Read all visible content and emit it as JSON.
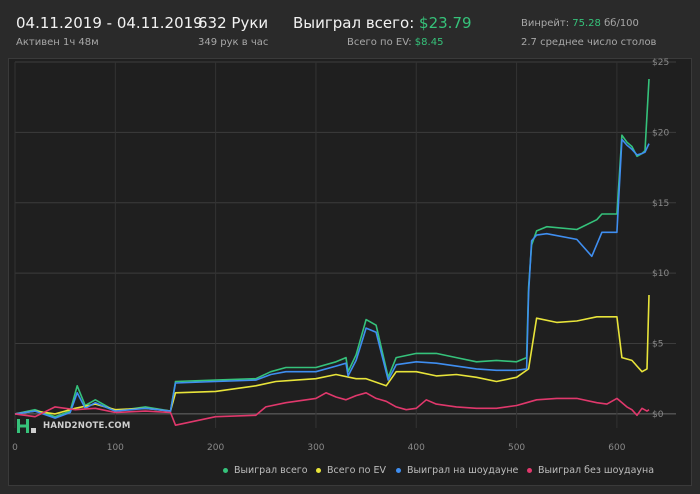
{
  "header": {
    "date_range": "04.11.2019 - 04.11.2019",
    "active_time": "Активен 1ч 48м",
    "hands": "632 Руки",
    "hands_per_hour": "349 рук в час",
    "won_total_label": "Выиграл всего:",
    "won_total_value": "$23.79",
    "ev_total_label": "Всего по EV:",
    "ev_total_value": "$8.45",
    "winrate_label": "Винрейт:",
    "winrate_value": "75.28",
    "winrate_unit": "бб/100",
    "avg_tables": "2.7 среднее число столов"
  },
  "watermark": "HAND2NOTE.COM",
  "colors": {
    "won": "#35c27b",
    "ev": "#e8e43a",
    "showdown": "#3f8ef0",
    "non_showdown": "#e0386c",
    "accent": "#36c27a"
  },
  "chart_data": {
    "type": "line",
    "xlim": [
      0,
      632
    ],
    "ylim": [
      -1,
      25
    ],
    "x_ticks": [
      0,
      100,
      200,
      300,
      400,
      500,
      600
    ],
    "y_ticks": [
      0,
      5,
      10,
      15,
      20,
      25
    ],
    "y_tick_labels": [
      "$0",
      "$5",
      "$10",
      "$15",
      "$20",
      "$25"
    ],
    "grid": true,
    "legend_position": "bottom-right",
    "series": [
      {
        "name": "Выиграл всего",
        "color": "#35c27b",
        "x": [
          0,
          20,
          40,
          55,
          62,
          70,
          80,
          100,
          130,
          155,
          160,
          200,
          240,
          255,
          270,
          300,
          320,
          330,
          332,
          340,
          350,
          360,
          372,
          380,
          400,
          420,
          440,
          460,
          480,
          500,
          510,
          512,
          515,
          520,
          530,
          560,
          580,
          585,
          600,
          605,
          610,
          615,
          620,
          625,
          628,
          632
        ],
        "y": [
          0,
          0.3,
          -0.2,
          0.2,
          2,
          0.6,
          1,
          0.2,
          0.5,
          0.2,
          2.3,
          2.4,
          2.5,
          3,
          3.3,
          3.3,
          3.7,
          4,
          3,
          4.2,
          6.7,
          6.3,
          2.6,
          4,
          4.3,
          4.3,
          4,
          3.7,
          3.8,
          3.7,
          4,
          9,
          12,
          13,
          13.3,
          13.1,
          13.8,
          14.2,
          14.2,
          19.8,
          19.3,
          19,
          18.3,
          18.5,
          18.7,
          23.79
        ]
      },
      {
        "name": "Всего по EV",
        "color": "#e8e43a",
        "x": [
          0,
          20,
          40,
          60,
          80,
          100,
          130,
          155,
          160,
          200,
          240,
          260,
          280,
          300,
          320,
          340,
          350,
          370,
          380,
          400,
          420,
          440,
          460,
          480,
          500,
          512,
          520,
          540,
          560,
          580,
          600,
          605,
          615,
          620,
          625,
          630,
          632
        ],
        "y": [
          0,
          0.2,
          0,
          0.4,
          0.7,
          0.3,
          0.4,
          0.2,
          1.5,
          1.6,
          2,
          2.3,
          2.4,
          2.5,
          2.8,
          2.5,
          2.5,
          2,
          3,
          3,
          2.7,
          2.8,
          2.6,
          2.3,
          2.6,
          3.2,
          6.8,
          6.5,
          6.6,
          6.9,
          6.9,
          4,
          3.8,
          3.4,
          3,
          3.2,
          8.45
        ]
      },
      {
        "name": "Выиграл на шоудауне",
        "color": "#3f8ef0",
        "x": [
          0,
          20,
          40,
          55,
          62,
          70,
          80,
          100,
          130,
          155,
          160,
          200,
          240,
          255,
          270,
          300,
          320,
          330,
          332,
          340,
          350,
          360,
          372,
          380,
          400,
          420,
          440,
          460,
          480,
          500,
          510,
          512,
          515,
          520,
          530,
          560,
          575,
          585,
          600,
          605,
          610,
          615,
          620,
          625,
          628,
          632
        ],
        "y": [
          0,
          0.2,
          -0.3,
          0.1,
          1.5,
          0.4,
          0.8,
          0.2,
          0.4,
          0.2,
          2.2,
          2.3,
          2.4,
          2.8,
          3,
          3,
          3.4,
          3.6,
          2.7,
          3.8,
          6.1,
          5.8,
          2.4,
          3.5,
          3.7,
          3.6,
          3.4,
          3.2,
          3.1,
          3.1,
          3.2,
          8.6,
          12.3,
          12.7,
          12.8,
          12.4,
          11.2,
          12.9,
          12.9,
          19.5,
          19.1,
          18.8,
          18.4,
          18.5,
          18.6,
          19.2
        ]
      },
      {
        "name": "Выиграл без шоудауна",
        "color": "#e0386c",
        "x": [
          0,
          20,
          40,
          60,
          80,
          100,
          130,
          155,
          160,
          200,
          240,
          250,
          270,
          300,
          310,
          320,
          330,
          340,
          350,
          360,
          370,
          380,
          390,
          400,
          410,
          420,
          440,
          460,
          480,
          500,
          510,
          520,
          540,
          560,
          580,
          590,
          600,
          610,
          615,
          620,
          625,
          630,
          632
        ],
        "y": [
          0,
          -0.2,
          0.5,
          0.3,
          0.4,
          0.1,
          0.2,
          0.1,
          -0.8,
          -0.2,
          -0.1,
          0.5,
          0.8,
          1.1,
          1.5,
          1.2,
          1,
          1.3,
          1.5,
          1.1,
          0.9,
          0.5,
          0.3,
          0.4,
          1,
          0.7,
          0.5,
          0.4,
          0.4,
          0.6,
          0.8,
          1,
          1.1,
          1.1,
          0.8,
          0.7,
          1.1,
          0.5,
          0.3,
          -0.1,
          0.4,
          0.2,
          0.3
        ]
      }
    ]
  }
}
